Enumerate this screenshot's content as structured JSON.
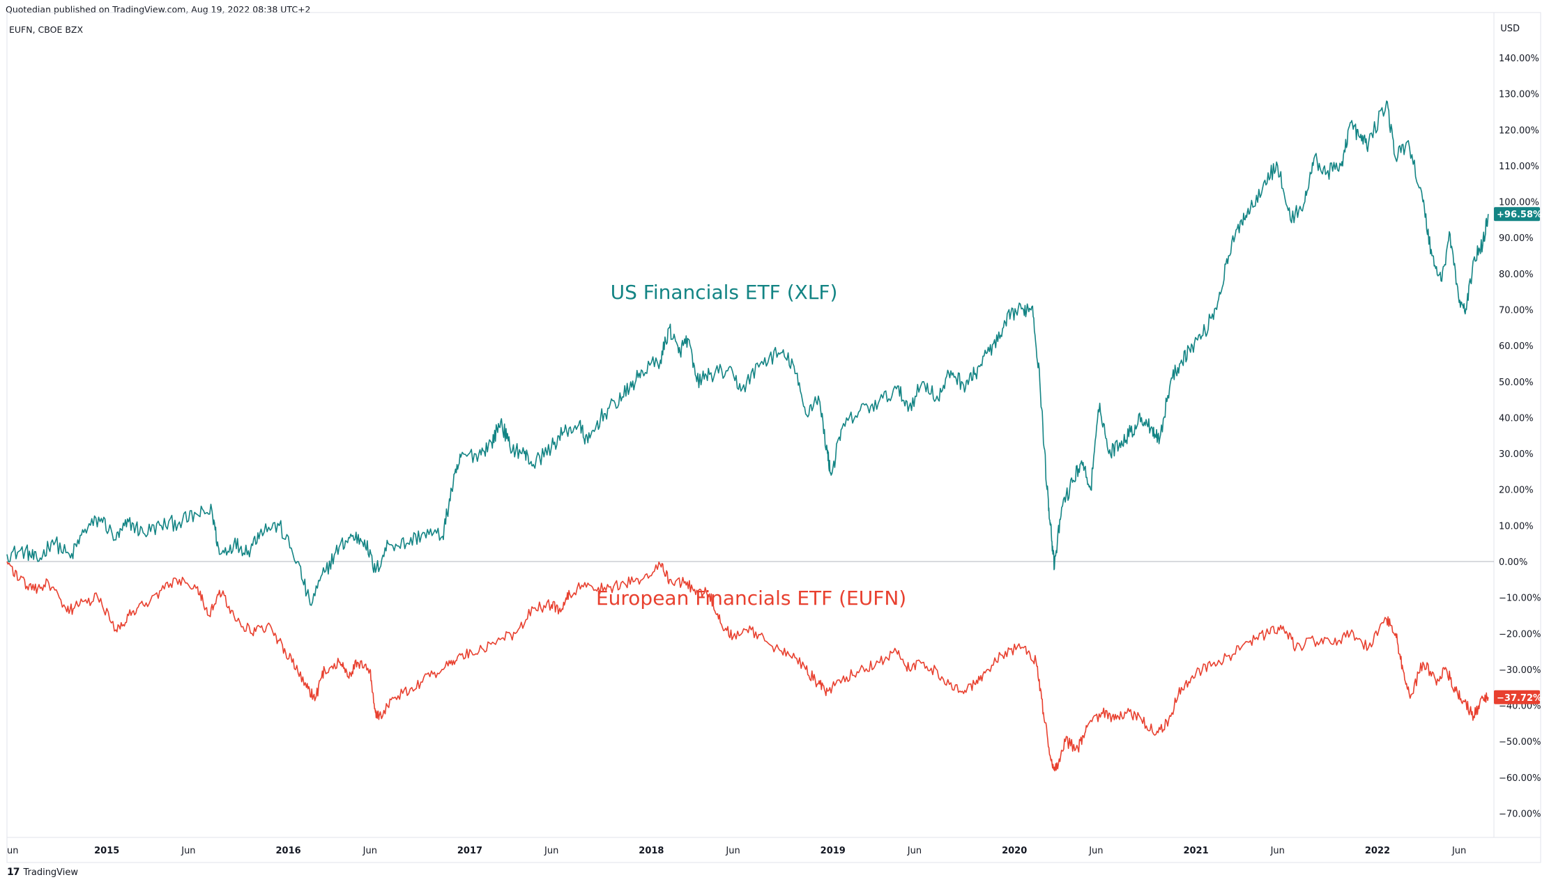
{
  "header": {
    "published": "Quotedian published on TradingView.com, Aug 19, 2022 08:38 UTC+2",
    "symbol": "EUFN, CBOE BZX",
    "currency": "USD"
  },
  "footer": {
    "brand": "TradingView",
    "brand_mark": "17"
  },
  "colors": {
    "xlf": "#138484",
    "eufn": "#e8402f",
    "zero_line": "#b2b5be",
    "border": "#e0e3eb"
  },
  "chart_data": {
    "type": "line",
    "x_tick_labels": [
      "un",
      "2015",
      "Jun",
      "2016",
      "Jun",
      "2017",
      "Jun",
      "2018",
      "Jun",
      "2019",
      "Jun",
      "2020",
      "Jun",
      "2021",
      "Jun",
      "2022",
      "Jun"
    ],
    "x_tick_times": [
      2014.45,
      2015.0,
      2015.45,
      2016.0,
      2016.45,
      2017.0,
      2017.45,
      2018.0,
      2018.45,
      2019.0,
      2019.45,
      2020.0,
      2020.45,
      2021.0,
      2021.45,
      2022.0,
      2022.45
    ],
    "y_ticks": [
      140,
      130,
      120,
      110,
      100,
      90,
      80,
      70,
      60,
      50,
      40,
      30,
      20,
      10,
      0,
      -10,
      -20,
      -30,
      -40,
      -50,
      -60,
      -70
    ],
    "y_tick_labels": [
      "140.00%",
      "130.00%",
      "120.00%",
      "110.00%",
      "100.00%",
      "90.00%",
      "80.00%",
      "70.00%",
      "60.00%",
      "50.00%",
      "40.00%",
      "30.00%",
      "20.00%",
      "10.00%",
      "0.00%",
      "−10.00%",
      "−20.00%",
      "−30.00%",
      "−40.00%",
      "−50.00%",
      "−60.00%",
      "−70.00%"
    ],
    "ylim": [
      -75,
      145
    ],
    "xlim": [
      2014.45,
      2022.63
    ],
    "annotations": [
      {
        "text": "US Financials ETF (XLF)",
        "series": "xlf",
        "x": 2018.4,
        "y": 73
      },
      {
        "text": "European Financials ETF (EUFN)",
        "series": "eufn",
        "x": 2018.55,
        "y": -12
      }
    ],
    "series": [
      {
        "key": "xlf",
        "last_label": "+96.58%",
        "last_value": 96.58,
        "points": [
          [
            2014.45,
            2
          ],
          [
            2014.55,
            3
          ],
          [
            2014.62,
            0
          ],
          [
            2014.7,
            6
          ],
          [
            2014.8,
            1
          ],
          [
            2014.88,
            9
          ],
          [
            2014.97,
            12
          ],
          [
            2015.05,
            6
          ],
          [
            2015.12,
            11
          ],
          [
            2015.2,
            8
          ],
          [
            2015.3,
            10
          ],
          [
            2015.4,
            11
          ],
          [
            2015.5,
            13
          ],
          [
            2015.58,
            14
          ],
          [
            2015.62,
            2
          ],
          [
            2015.7,
            5
          ],
          [
            2015.78,
            3
          ],
          [
            2015.85,
            9
          ],
          [
            2015.95,
            10
          ],
          [
            2016.05,
            0
          ],
          [
            2016.12,
            -12
          ],
          [
            2016.2,
            -3
          ],
          [
            2016.28,
            4
          ],
          [
            2016.35,
            7
          ],
          [
            2016.42,
            6
          ],
          [
            2016.48,
            -3
          ],
          [
            2016.55,
            5
          ],
          [
            2016.65,
            5
          ],
          [
            2016.75,
            8
          ],
          [
            2016.85,
            7
          ],
          [
            2016.9,
            20
          ],
          [
            2016.95,
            29
          ],
          [
            2017.05,
            30
          ],
          [
            2017.12,
            33
          ],
          [
            2017.17,
            39
          ],
          [
            2017.22,
            32
          ],
          [
            2017.3,
            30
          ],
          [
            2017.35,
            27
          ],
          [
            2017.45,
            32
          ],
          [
            2017.52,
            36
          ],
          [
            2017.6,
            38
          ],
          [
            2017.65,
            33
          ],
          [
            2017.72,
            40
          ],
          [
            2017.8,
            44
          ],
          [
            2017.88,
            48
          ],
          [
            2017.95,
            53
          ],
          [
            2018.05,
            56
          ],
          [
            2018.1,
            65
          ],
          [
            2018.15,
            58
          ],
          [
            2018.2,
            62
          ],
          [
            2018.25,
            50
          ],
          [
            2018.32,
            52
          ],
          [
            2018.42,
            53
          ],
          [
            2018.5,
            48
          ],
          [
            2018.6,
            55
          ],
          [
            2018.7,
            58
          ],
          [
            2018.78,
            55
          ],
          [
            2018.85,
            41
          ],
          [
            2018.92,
            46
          ],
          [
            2018.97,
            30
          ],
          [
            2018.99,
            24
          ],
          [
            2019.05,
            37
          ],
          [
            2019.15,
            42
          ],
          [
            2019.25,
            44
          ],
          [
            2019.35,
            48
          ],
          [
            2019.42,
            43
          ],
          [
            2019.5,
            50
          ],
          [
            2019.58,
            45
          ],
          [
            2019.65,
            53
          ],
          [
            2019.72,
            49
          ],
          [
            2019.78,
            52
          ],
          [
            2019.85,
            58
          ],
          [
            2019.92,
            62
          ],
          [
            2019.98,
            69
          ],
          [
            2020.05,
            70
          ],
          [
            2020.1,
            71
          ],
          [
            2020.14,
            50
          ],
          [
            2020.18,
            20
          ],
          [
            2020.2,
            10
          ],
          [
            2020.22,
            -2
          ],
          [
            2020.26,
            15
          ],
          [
            2020.32,
            22
          ],
          [
            2020.37,
            28
          ],
          [
            2020.42,
            20
          ],
          [
            2020.47,
            44
          ],
          [
            2020.52,
            30
          ],
          [
            2020.58,
            33
          ],
          [
            2020.64,
            36
          ],
          [
            2020.7,
            40
          ],
          [
            2020.76,
            37
          ],
          [
            2020.8,
            34
          ],
          [
            2020.86,
            50
          ],
          [
            2020.92,
            56
          ],
          [
            2020.98,
            60
          ],
          [
            2021.05,
            64
          ],
          [
            2021.12,
            72
          ],
          [
            2021.18,
            85
          ],
          [
            2021.25,
            95
          ],
          [
            2021.3,
            98
          ],
          [
            2021.38,
            106
          ],
          [
            2021.45,
            110
          ],
          [
            2021.52,
            95
          ],
          [
            2021.6,
            100
          ],
          [
            2021.65,
            112
          ],
          [
            2021.72,
            108
          ],
          [
            2021.8,
            110
          ],
          [
            2021.85,
            122
          ],
          [
            2021.9,
            118
          ],
          [
            2021.95,
            116
          ],
          [
            2022.05,
            128
          ],
          [
            2022.1,
            112
          ],
          [
            2022.17,
            117
          ],
          [
            2022.25,
            100
          ],
          [
            2022.3,
            85
          ],
          [
            2022.35,
            78
          ],
          [
            2022.4,
            91
          ],
          [
            2022.45,
            72
          ],
          [
            2022.49,
            70
          ],
          [
            2022.53,
            84
          ],
          [
            2022.58,
            88
          ],
          [
            2022.61,
            96.58
          ]
        ]
      },
      {
        "key": "eufn",
        "last_label": "−37.72%",
        "last_value": -37.72,
        "points": [
          [
            2014.45,
            0
          ],
          [
            2014.52,
            -5
          ],
          [
            2014.6,
            -8
          ],
          [
            2014.68,
            -6
          ],
          [
            2014.78,
            -14
          ],
          [
            2014.85,
            -12
          ],
          [
            2014.95,
            -10
          ],
          [
            2015.05,
            -19
          ],
          [
            2015.12,
            -15
          ],
          [
            2015.2,
            -12
          ],
          [
            2015.3,
            -8
          ],
          [
            2015.4,
            -5
          ],
          [
            2015.5,
            -7
          ],
          [
            2015.56,
            -15
          ],
          [
            2015.62,
            -8
          ],
          [
            2015.7,
            -15
          ],
          [
            2015.8,
            -20
          ],
          [
            2015.88,
            -18
          ],
          [
            2015.95,
            -22
          ],
          [
            2016.02,
            -28
          ],
          [
            2016.1,
            -35
          ],
          [
            2016.15,
            -38
          ],
          [
            2016.2,
            -30
          ],
          [
            2016.28,
            -28
          ],
          [
            2016.33,
            -32
          ],
          [
            2016.38,
            -28
          ],
          [
            2016.45,
            -30
          ],
          [
            2016.48,
            -42
          ],
          [
            2016.5,
            -43
          ],
          [
            2016.58,
            -38
          ],
          [
            2016.68,
            -35
          ],
          [
            2016.78,
            -32
          ],
          [
            2016.88,
            -29
          ],
          [
            2016.95,
            -26
          ],
          [
            2017.05,
            -25
          ],
          [
            2017.15,
            -22
          ],
          [
            2017.25,
            -20
          ],
          [
            2017.35,
            -13
          ],
          [
            2017.45,
            -12
          ],
          [
            2017.5,
            -14
          ],
          [
            2017.55,
            -9
          ],
          [
            2017.65,
            -6
          ],
          [
            2017.75,
            -8
          ],
          [
            2017.85,
            -6
          ],
          [
            2017.95,
            -5
          ],
          [
            2018.05,
            -1
          ],
          [
            2018.1,
            -5
          ],
          [
            2018.18,
            -6
          ],
          [
            2018.25,
            -8
          ],
          [
            2018.32,
            -9
          ],
          [
            2018.38,
            -17
          ],
          [
            2018.45,
            -21
          ],
          [
            2018.55,
            -19
          ],
          [
            2018.65,
            -23
          ],
          [
            2018.75,
            -25
          ],
          [
            2018.85,
            -30
          ],
          [
            2018.92,
            -34
          ],
          [
            2018.97,
            -36
          ],
          [
            2019.05,
            -33
          ],
          [
            2019.15,
            -30
          ],
          [
            2019.25,
            -28
          ],
          [
            2019.35,
            -25
          ],
          [
            2019.42,
            -30
          ],
          [
            2019.5,
            -28
          ],
          [
            2019.6,
            -32
          ],
          [
            2019.7,
            -36
          ],
          [
            2019.78,
            -34
          ],
          [
            2019.85,
            -30
          ],
          [
            2019.95,
            -25
          ],
          [
            2020.05,
            -24
          ],
          [
            2020.12,
            -28
          ],
          [
            2020.16,
            -42
          ],
          [
            2020.2,
            -55
          ],
          [
            2020.23,
            -58
          ],
          [
            2020.28,
            -50
          ],
          [
            2020.35,
            -52
          ],
          [
            2020.4,
            -46
          ],
          [
            2020.48,
            -42
          ],
          [
            2020.55,
            -44
          ],
          [
            2020.62,
            -42
          ],
          [
            2020.7,
            -44
          ],
          [
            2020.78,
            -48
          ],
          [
            2020.85,
            -44
          ],
          [
            2020.92,
            -35
          ],
          [
            2021.0,
            -31
          ],
          [
            2021.1,
            -28
          ],
          [
            2021.2,
            -26
          ],
          [
            2021.3,
            -22
          ],
          [
            2021.4,
            -20
          ],
          [
            2021.48,
            -18
          ],
          [
            2021.55,
            -24
          ],
          [
            2021.65,
            -22
          ],
          [
            2021.75,
            -23
          ],
          [
            2021.85,
            -20
          ],
          [
            2021.95,
            -24
          ],
          [
            2022.05,
            -16
          ],
          [
            2022.1,
            -20
          ],
          [
            2022.14,
            -30
          ],
          [
            2022.18,
            -38
          ],
          [
            2022.25,
            -28
          ],
          [
            2022.32,
            -33
          ],
          [
            2022.38,
            -30
          ],
          [
            2022.43,
            -36
          ],
          [
            2022.48,
            -39
          ],
          [
            2022.53,
            -43
          ],
          [
            2022.58,
            -38
          ],
          [
            2022.61,
            -37.72
          ]
        ]
      }
    ]
  }
}
